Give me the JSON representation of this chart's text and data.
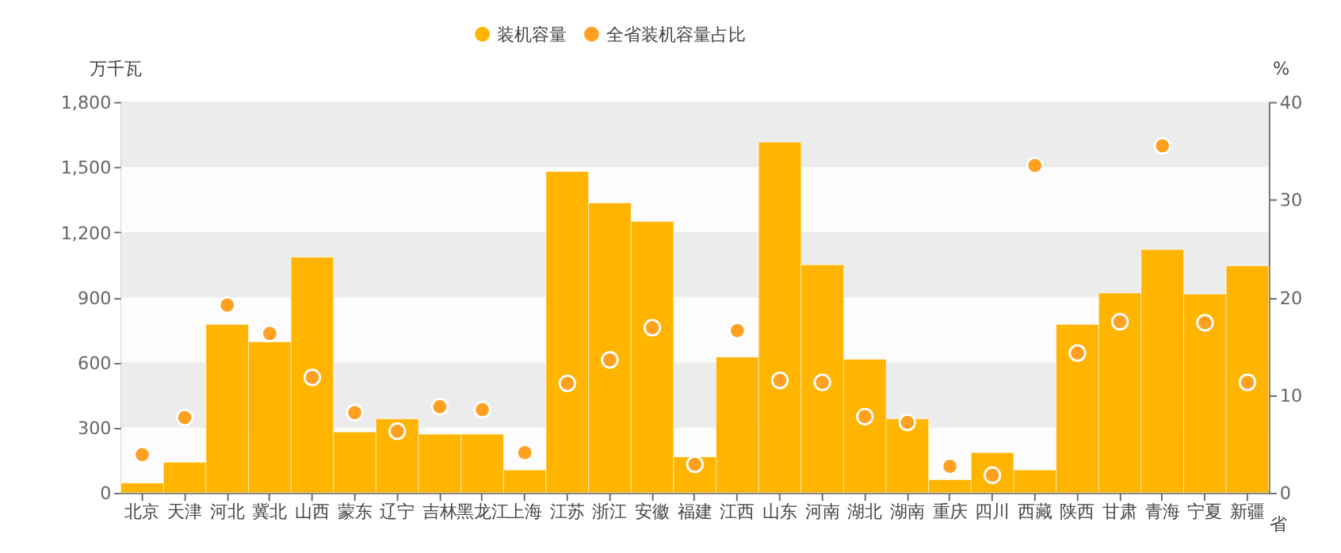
{
  "chart_data": {
    "type": "bar",
    "xlabel": "省",
    "ylabel": "万千瓦",
    "y2label": "%",
    "categories": [
      "北京",
      "天津",
      "河北",
      "冀北",
      "山西",
      "蒙东",
      "辽宁",
      "吉林",
      "黑龙江",
      "上海",
      "江苏",
      "浙江",
      "安徽",
      "福建",
      "江西",
      "山东",
      "河南",
      "湖北",
      "湖南",
      "重庆",
      "四川",
      "西藏",
      "陕西",
      "甘肃",
      "青海",
      "宁夏",
      "新疆"
    ],
    "series": [
      {
        "name": "装机容量",
        "color": "#ffb400",
        "values": [
          45,
          140,
          775,
          695,
          1085,
          280,
          340,
          270,
          270,
          105,
          1480,
          1335,
          1250,
          165,
          625,
          1615,
          1050,
          615,
          340,
          60,
          185,
          105,
          775,
          920,
          1120,
          915,
          1045
        ]
      },
      {
        "name": "全省装机容量占比",
        "type": "scatter",
        "axis": "y2",
        "color": "#ffa020",
        "values": [
          3.9,
          7.7,
          19.2,
          16.3,
          11.8,
          8.2,
          6.3,
          8.8,
          8.5,
          4.1,
          11.2,
          13.6,
          16.9,
          2.9,
          16.6,
          11.5,
          11.3,
          7.8,
          7.2,
          2.7,
          1.8,
          33.5,
          14.3,
          17.5,
          35.5,
          17.4,
          11.3
        ]
      }
    ],
    "ylim": [
      0,
      1800
    ],
    "yticks": [
      {
        "value": 0,
        "label": "0"
      },
      {
        "value": 300,
        "label": "300"
      },
      {
        "value": 600,
        "label": "600"
      },
      {
        "value": 900,
        "label": "900"
      },
      {
        "value": 1200,
        "label": "1,200"
      },
      {
        "value": 1500,
        "label": "1,500"
      },
      {
        "value": 1800,
        "label": "1,800"
      }
    ],
    "y2lim": [
      0,
      40
    ],
    "y2ticks": [
      0,
      10,
      20,
      30,
      40
    ],
    "grid": "y",
    "legend": "top",
    "marker": "circle"
  }
}
